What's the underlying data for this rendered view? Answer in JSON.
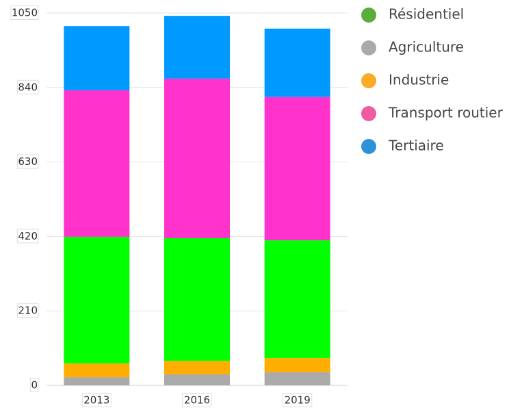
{
  "chart_data": {
    "type": "stacked_bar",
    "categories": [
      "2013",
      "2016",
      "2019"
    ],
    "series": [
      {
        "name": "Agriculture",
        "color": "#aaaaaa",
        "legend_color": "#aaaaaa",
        "values": [
          23,
          31,
          37
        ]
      },
      {
        "name": "Industrie",
        "color": "#ffae00",
        "legend_color": "#f9ac25",
        "values": [
          39,
          38,
          40
        ]
      },
      {
        "name": "Résidentiel",
        "color": "#00ff00",
        "legend_color": "#5aac3c",
        "values": [
          357,
          346,
          332
        ]
      },
      {
        "name": "Transport routier",
        "color": "#ff33cc",
        "legend_color": "#ef5aa0",
        "values": [
          413,
          450,
          404
        ]
      },
      {
        "name": "Tertiaire",
        "color": "#0099ff",
        "legend_color": "#2e93d6",
        "values": [
          181,
          177,
          193
        ]
      }
    ],
    "legend_order": [
      2,
      0,
      1,
      3,
      4
    ],
    "ylim": [
      0,
      1050
    ],
    "yticks": [
      0,
      210,
      420,
      630,
      840,
      1050
    ],
    "grid": true
  }
}
